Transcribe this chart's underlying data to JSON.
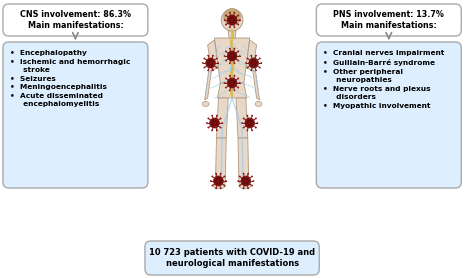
{
  "bg_color": "#ffffff",
  "title_cns": "CNS involvement: 86.3%\nMain manifestations:",
  "title_pns": "PNS involvement: 13.7%\nMain manifestations:",
  "cns_items": [
    "Encephalopathy",
    "Ischemic and hemorrhagic\n     stroke",
    "Seizures",
    "Meningoencephalitis",
    "Acute disseminated\n     encephalomyelitis"
  ],
  "pns_items": [
    "Cranial nerves impairment",
    "Guillain-Barré syndrome",
    "Other peripheral\n     neuropathies",
    "Nerve roots and plexus\n     disorders",
    "Myopathic involvement"
  ],
  "bottom_text": "10 723 patients with COVID-19 and\nneurological manifestations",
  "title_box_facecolor": "#ffffff",
  "bullet_box_facecolor": "#ddeeff",
  "bottom_box_facecolor": "#ddeeff",
  "box_edgecolor": "#aaaaaa",
  "text_color": "#000000",
  "bullet": "•",
  "body_skin": "#e8d8c8",
  "body_outline": "#b09880",
  "nerve_color": "#99ccee",
  "spine_color": "#ddbb44",
  "virus_color": "#7a1010",
  "virus_spike_color": "#8B1515"
}
